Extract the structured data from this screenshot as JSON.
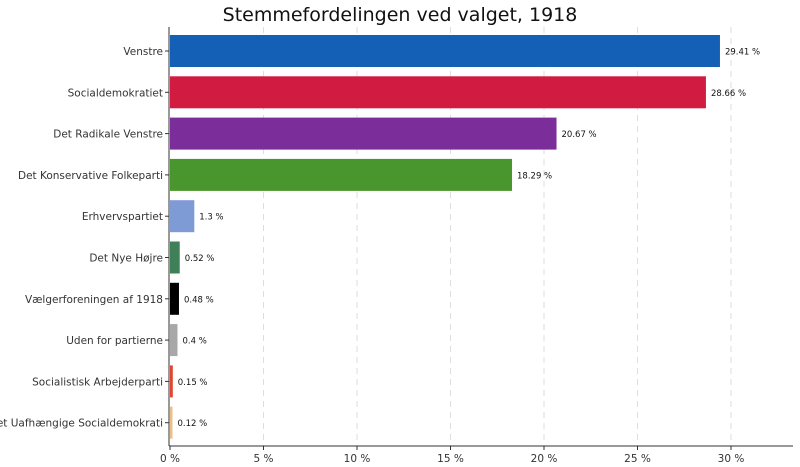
{
  "chart_data": {
    "type": "bar",
    "orientation": "horizontal",
    "title": "Stemmefordelingen ved valget, 1918",
    "xlabel": "",
    "ylabel": "",
    "xlim": [
      0,
      32
    ],
    "grid": "vertical dashed",
    "legend": "none",
    "x_ticks": [
      {
        "value": 0,
        "label": "0 %"
      },
      {
        "value": 5,
        "label": "5 %"
      },
      {
        "value": 10,
        "label": "10 %"
      },
      {
        "value": 15,
        "label": "15 %"
      },
      {
        "value": 20,
        "label": "20 %"
      },
      {
        "value": 25,
        "label": "25 %"
      },
      {
        "value": 30,
        "label": "30 %"
      }
    ],
    "bars": [
      {
        "category": "Venstre",
        "value": 29.41,
        "label": "29.41 %",
        "color": "#1460b7"
      },
      {
        "category": "Socialdemokratiet",
        "value": 28.66,
        "label": "28.66 %",
        "color": "#d21b41"
      },
      {
        "category": "Det Radikale Venstre",
        "value": 20.67,
        "label": "20.67 %",
        "color": "#7b2e9a"
      },
      {
        "category": "Det Konservative Folkeparti",
        "value": 18.29,
        "label": "18.29 %",
        "color": "#4a962e"
      },
      {
        "category": "Erhvervspartiet",
        "value": 1.3,
        "label": "1.3 %",
        "color": "#7f9bd6"
      },
      {
        "category": "Det Nye Højre",
        "value": 0.52,
        "label": "0.52 %",
        "color": "#3f8058"
      },
      {
        "category": "Vælgerforeningen af 1918",
        "value": 0.48,
        "label": "0.48 %",
        "color": "#000000"
      },
      {
        "category": "Uden for partierne",
        "value": 0.4,
        "label": "0.4 %",
        "color": "#a8a8a8"
      },
      {
        "category": "Socialistisk Arbejderparti",
        "value": 0.15,
        "label": "0.15 %",
        "color": "#e0452f"
      },
      {
        "category": "Det Uafhængige Socialdemokrati",
        "value": 0.12,
        "label": "0.12 %",
        "color": "#e9c08d"
      }
    ]
  }
}
